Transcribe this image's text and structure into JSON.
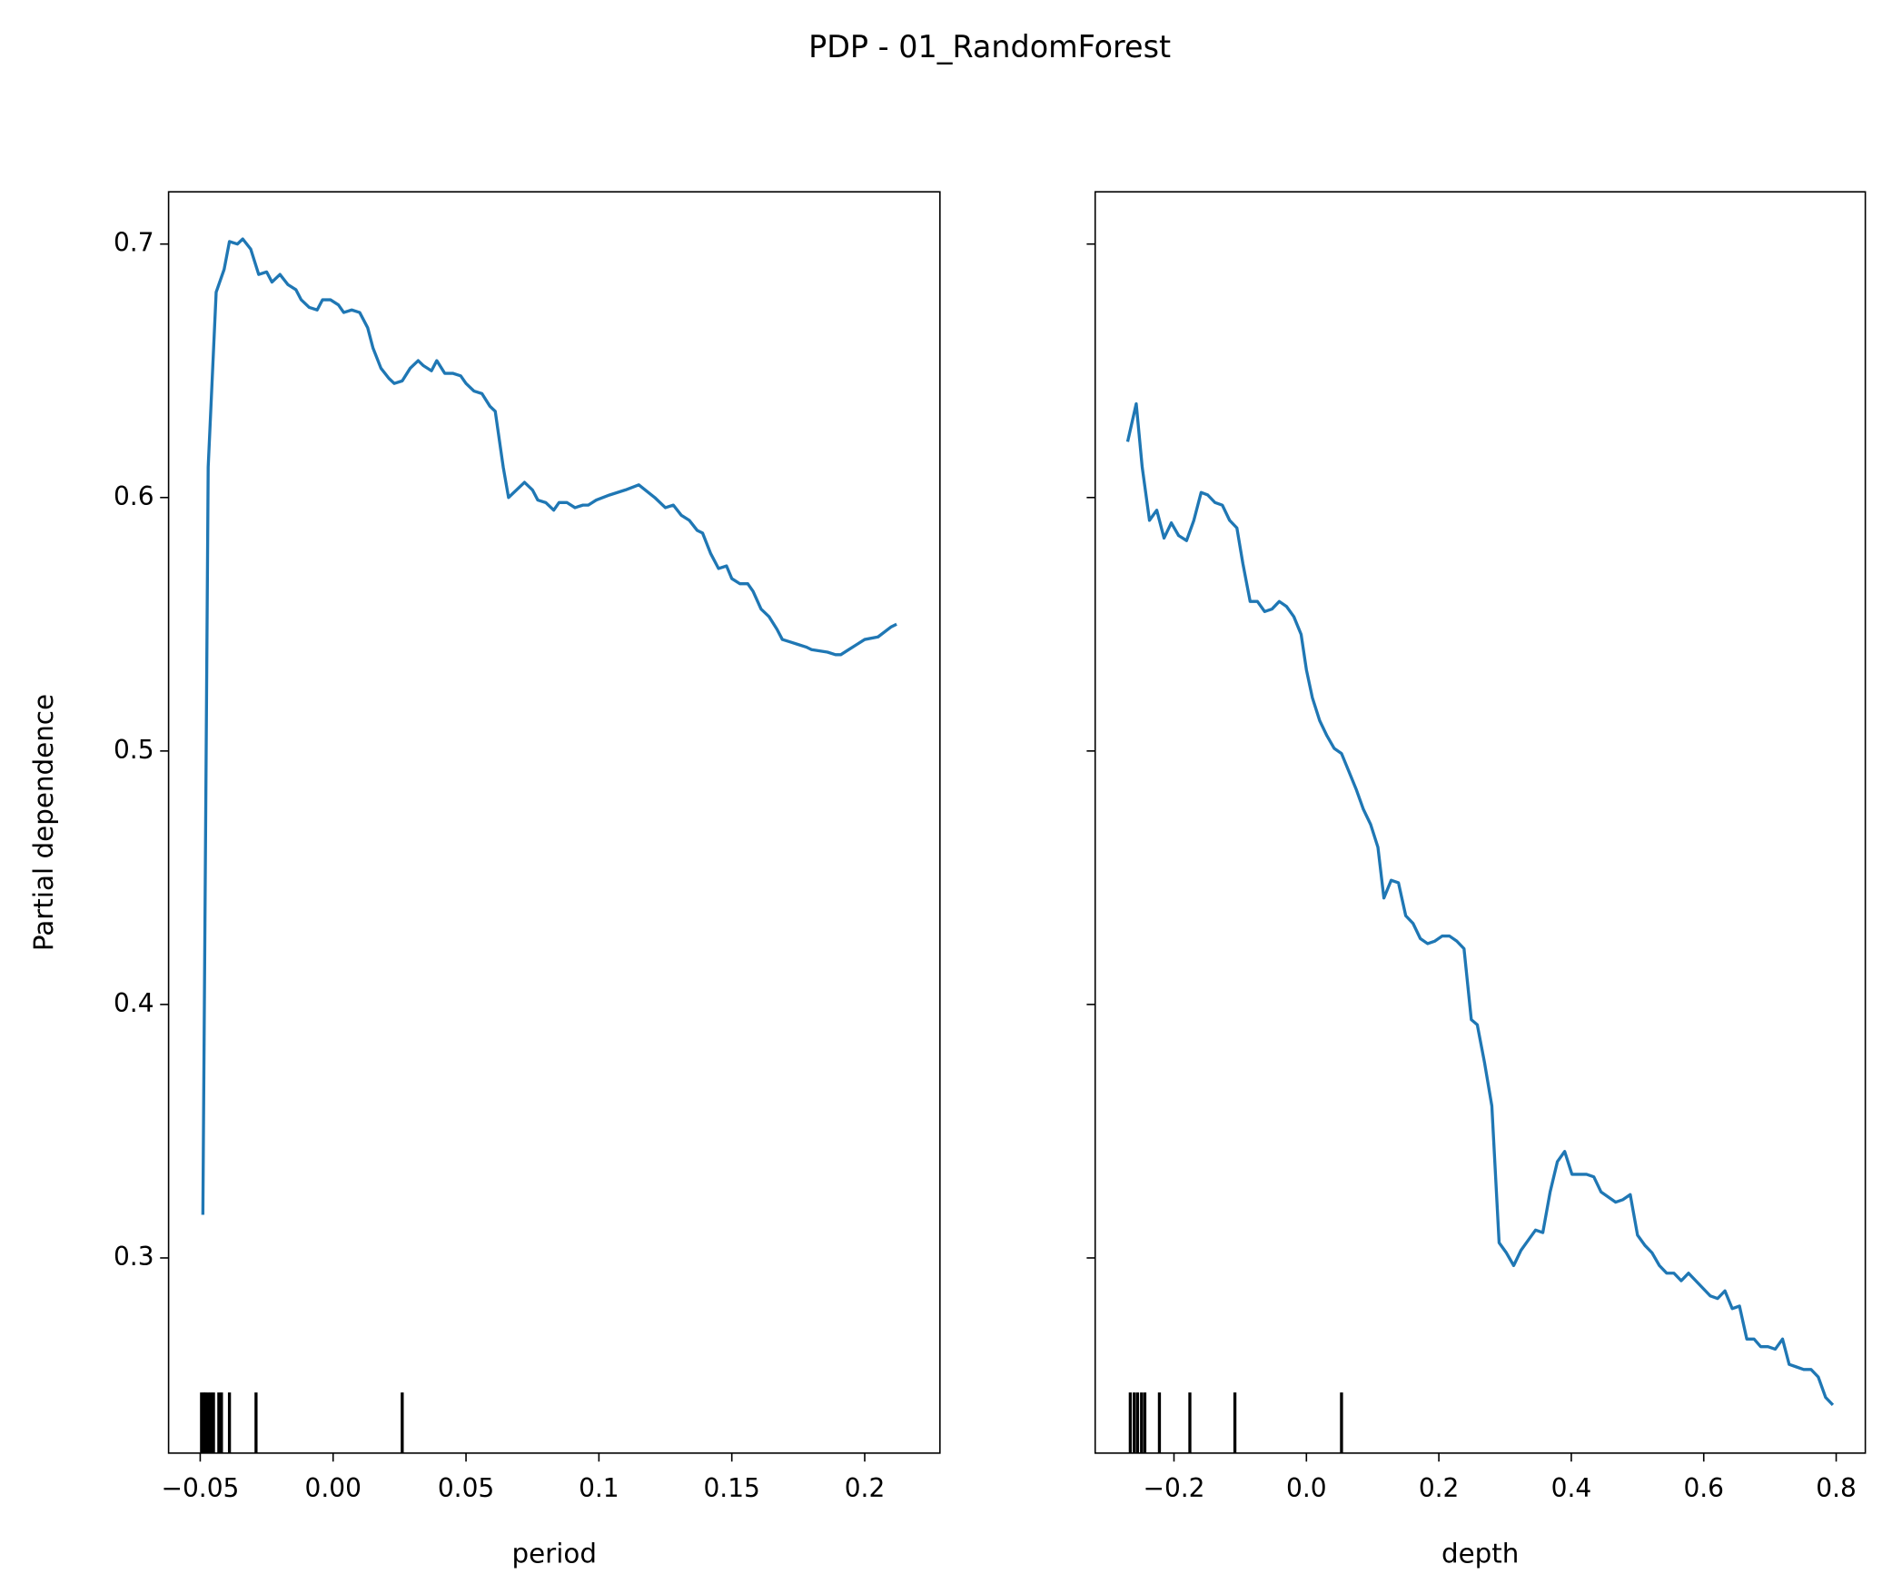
{
  "title": "PDP - 01_RandomForest",
  "chart_data": [
    {
      "type": "line",
      "xlabel": "period",
      "ylabel": "Partial dependence",
      "xlim": [
        -0.0619,
        0.2283
      ],
      "ylim": [
        0.223,
        0.7206
      ],
      "xticks": [
        {
          "value": -0.05,
          "label": "−0.05"
        },
        {
          "value": 0,
          "label": "0.00"
        },
        0.05,
        0.1,
        0.15,
        0.2
      ],
      "yticks": [
        0.3,
        0.4,
        0.5,
        0.6,
        0.7
      ],
      "show_ytick_labels": true,
      "color": "#1f77b4",
      "rug_color": "#000000",
      "x": [
        -0.049,
        -0.047,
        -0.044,
        -0.041,
        -0.039,
        -0.036,
        -0.034,
        -0.031,
        -0.028,
        -0.025,
        -0.023,
        -0.02,
        -0.017,
        -0.014,
        -0.012,
        -0.009,
        -0.006,
        -0.004,
        -0.001,
        0.002,
        0.004,
        0.007,
        0.01,
        0.013,
        0.015,
        0.018,
        0.021,
        0.023,
        0.026,
        0.029,
        0.032,
        0.034,
        0.037,
        0.039,
        0.042,
        0.045,
        0.048,
        0.05,
        0.053,
        0.056,
        0.059,
        0.061,
        0.064,
        0.066,
        0.069,
        0.072,
        0.075,
        0.077,
        0.08,
        0.083,
        0.085,
        0.088,
        0.091,
        0.094,
        0.096,
        0.099,
        0.104,
        0.11,
        0.115,
        0.121,
        0.125,
        0.128,
        0.131,
        0.134,
        0.137,
        0.139,
        0.142,
        0.145,
        0.148,
        0.15,
        0.153,
        0.156,
        0.158,
        0.161,
        0.164,
        0.167,
        0.169,
        0.172,
        0.175,
        0.178,
        0.18,
        0.186,
        0.189,
        0.191,
        0.194,
        0.197,
        0.2,
        0.205,
        0.21,
        0.212
      ],
      "values": [
        0.317,
        0.612,
        0.681,
        0.69,
        0.701,
        0.7,
        0.702,
        0.698,
        0.688,
        0.689,
        0.685,
        0.688,
        0.684,
        0.682,
        0.678,
        0.675,
        0.674,
        0.678,
        0.678,
        0.676,
        0.673,
        0.674,
        0.673,
        0.667,
        0.659,
        0.651,
        0.647,
        0.645,
        0.646,
        0.651,
        0.654,
        0.652,
        0.65,
        0.654,
        0.649,
        0.649,
        0.648,
        0.645,
        0.642,
        0.641,
        0.636,
        0.634,
        0.612,
        0.6,
        0.603,
        0.606,
        0.603,
        0.599,
        0.598,
        0.595,
        0.598,
        0.598,
        0.596,
        0.597,
        0.597,
        0.599,
        0.601,
        0.603,
        0.605,
        0.6,
        0.596,
        0.597,
        0.593,
        0.591,
        0.587,
        0.586,
        0.578,
        0.572,
        0.573,
        0.568,
        0.566,
        0.566,
        0.563,
        0.556,
        0.553,
        0.548,
        0.544,
        0.543,
        0.542,
        0.541,
        0.54,
        0.539,
        0.538,
        0.538,
        0.54,
        0.542,
        0.544,
        0.545,
        0.549,
        0.55
      ],
      "rug": [
        -0.0495,
        -0.0486,
        -0.048,
        -0.047,
        -0.046,
        -0.045,
        -0.043,
        -0.042,
        -0.039,
        -0.029,
        0.026
      ]
    },
    {
      "type": "line",
      "xlabel": "depth",
      "xlim": [
        -0.319,
        0.844
      ],
      "ylim": [
        0.223,
        0.7206
      ],
      "xticks": [
        {
          "value": -0.2,
          "label": "−0.2"
        },
        {
          "value": 0,
          "label": "0.0"
        },
        0.2,
        0.4,
        0.6,
        0.8
      ],
      "yticks": [
        0.3,
        0.4,
        0.5,
        0.6,
        0.7
      ],
      "show_ytick_labels": false,
      "color": "#1f77b4",
      "rug_color": "#000000",
      "x": [
        -0.27,
        -0.257,
        -0.248,
        -0.237,
        -0.226,
        -0.215,
        -0.204,
        -0.193,
        -0.181,
        -0.17,
        -0.159,
        -0.149,
        -0.138,
        -0.127,
        -0.116,
        -0.105,
        -0.096,
        -0.085,
        -0.074,
        -0.063,
        -0.052,
        -0.041,
        -0.03,
        -0.019,
        -0.008,
        0.0,
        0.009,
        0.02,
        0.031,
        0.042,
        0.053,
        0.064,
        0.075,
        0.086,
        0.097,
        0.108,
        0.117,
        0.128,
        0.139,
        0.15,
        0.161,
        0.172,
        0.183,
        0.194,
        0.205,
        0.216,
        0.227,
        0.238,
        0.249,
        0.258,
        0.269,
        0.28,
        0.291,
        0.302,
        0.313,
        0.324,
        0.335,
        0.346,
        0.357,
        0.368,
        0.379,
        0.39,
        0.401,
        0.412,
        0.423,
        0.434,
        0.445,
        0.456,
        0.467,
        0.478,
        0.489,
        0.5,
        0.511,
        0.522,
        0.533,
        0.544,
        0.555,
        0.566,
        0.577,
        0.588,
        0.599,
        0.61,
        0.621,
        0.632,
        0.643,
        0.654,
        0.665,
        0.676,
        0.686,
        0.697,
        0.708,
        0.719,
        0.729,
        0.74,
        0.751,
        0.762,
        0.773,
        0.784,
        0.795
      ],
      "values": [
        0.622,
        0.637,
        0.612,
        0.591,
        0.595,
        0.584,
        0.59,
        0.585,
        0.583,
        0.591,
        0.602,
        0.601,
        0.598,
        0.597,
        0.591,
        0.588,
        0.574,
        0.559,
        0.559,
        0.555,
        0.556,
        0.559,
        0.557,
        0.553,
        0.546,
        0.532,
        0.521,
        0.512,
        0.506,
        0.501,
        0.499,
        0.492,
        0.485,
        0.477,
        0.471,
        0.462,
        0.442,
        0.449,
        0.448,
        0.435,
        0.432,
        0.426,
        0.424,
        0.425,
        0.427,
        0.427,
        0.425,
        0.422,
        0.394,
        0.392,
        0.377,
        0.36,
        0.306,
        0.302,
        0.297,
        0.303,
        0.307,
        0.311,
        0.31,
        0.326,
        0.338,
        0.342,
        0.333,
        0.333,
        0.333,
        0.332,
        0.326,
        0.324,
        0.322,
        0.323,
        0.325,
        0.309,
        0.305,
        0.302,
        0.297,
        0.294,
        0.294,
        0.291,
        0.294,
        0.291,
        0.288,
        0.285,
        0.284,
        0.287,
        0.28,
        0.281,
        0.268,
        0.268,
        0.265,
        0.265,
        0.264,
        0.268,
        0.258,
        0.257,
        0.256,
        0.256,
        0.253,
        0.245,
        0.242
      ],
      "rug": [
        -0.266,
        -0.26,
        -0.255,
        -0.249,
        -0.244,
        -0.222,
        -0.176,
        -0.108,
        0.053
      ]
    }
  ]
}
